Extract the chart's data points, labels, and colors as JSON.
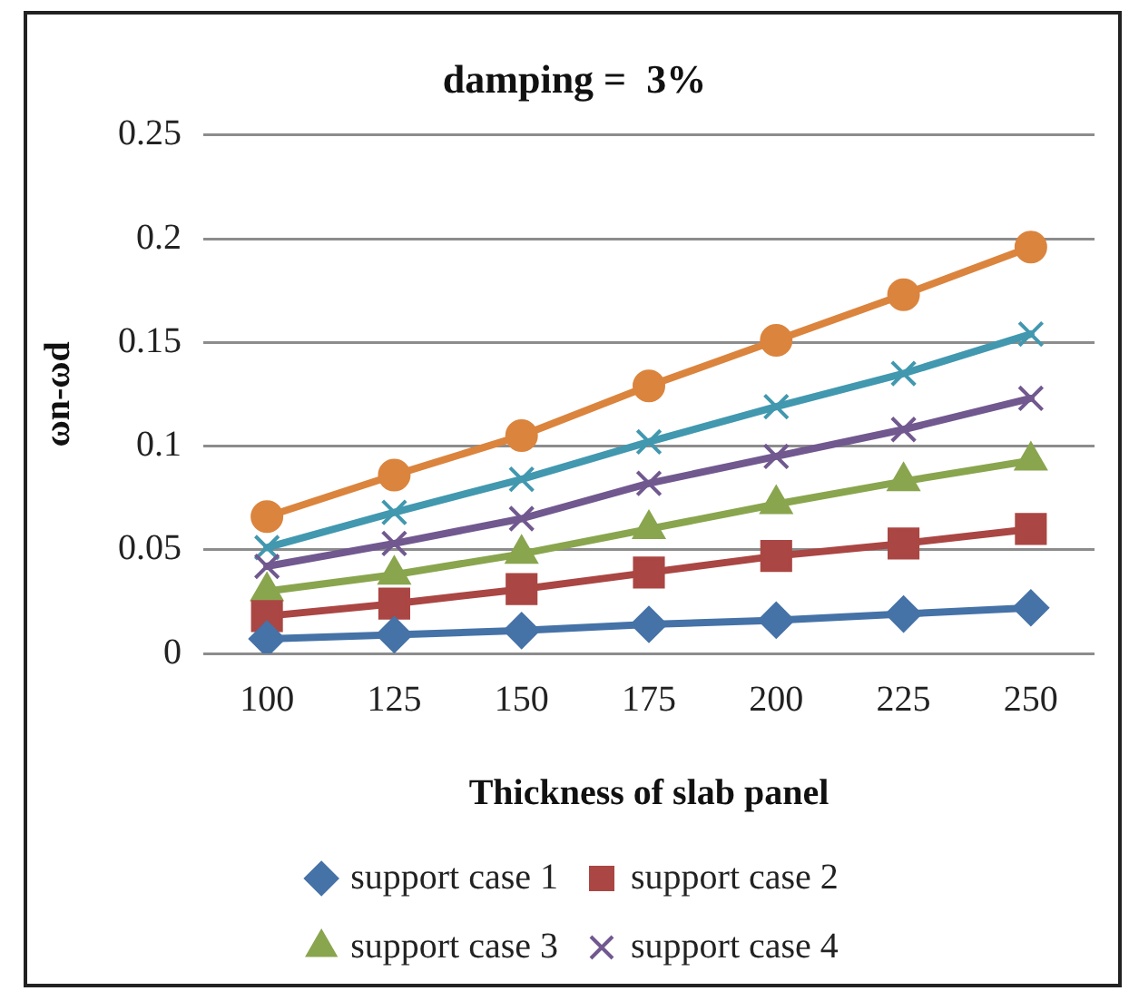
{
  "chart_data": {
    "type": "line",
    "title": "damping =  3%",
    "xlabel": "Thickness of slab panel",
    "ylabel": "ωn-ωd",
    "categories": [
      "100",
      "125",
      "150",
      "175",
      "200",
      "225",
      "250"
    ],
    "series": [
      {
        "name": "support case 1",
        "color": "#4572a7",
        "marker": "diamond",
        "values": [
          0.007,
          0.009,
          0.011,
          0.014,
          0.016,
          0.019,
          0.022
        ]
      },
      {
        "name": "support case 2",
        "color": "#aa4643",
        "marker": "square",
        "values": [
          0.018,
          0.024,
          0.031,
          0.039,
          0.047,
          0.053,
          0.06
        ]
      },
      {
        "name": "support case 3",
        "color": "#89a54e",
        "marker": "triangle",
        "values": [
          0.03,
          0.038,
          0.048,
          0.06,
          0.072,
          0.083,
          0.093
        ]
      },
      {
        "name": "support case 4",
        "color": "#71588f",
        "marker": "cross",
        "values": [
          0.042,
          0.053,
          0.065,
          0.082,
          0.095,
          0.108,
          0.123
        ]
      },
      {
        "color": "#4198af",
        "marker": "cross",
        "values": [
          0.051,
          0.068,
          0.084,
          0.102,
          0.119,
          0.135,
          0.154
        ]
      },
      {
        "color": "#db843d",
        "marker": "circle",
        "values": [
          0.066,
          0.086,
          0.105,
          0.129,
          0.151,
          0.173,
          0.196
        ]
      }
    ],
    "ylim": [
      0,
      0.25
    ],
    "yticks": [
      0,
      0.05,
      0.1,
      0.15,
      0.2,
      0.25
    ],
    "grid": "y",
    "legend": "bottom",
    "line_style": "solid"
  }
}
